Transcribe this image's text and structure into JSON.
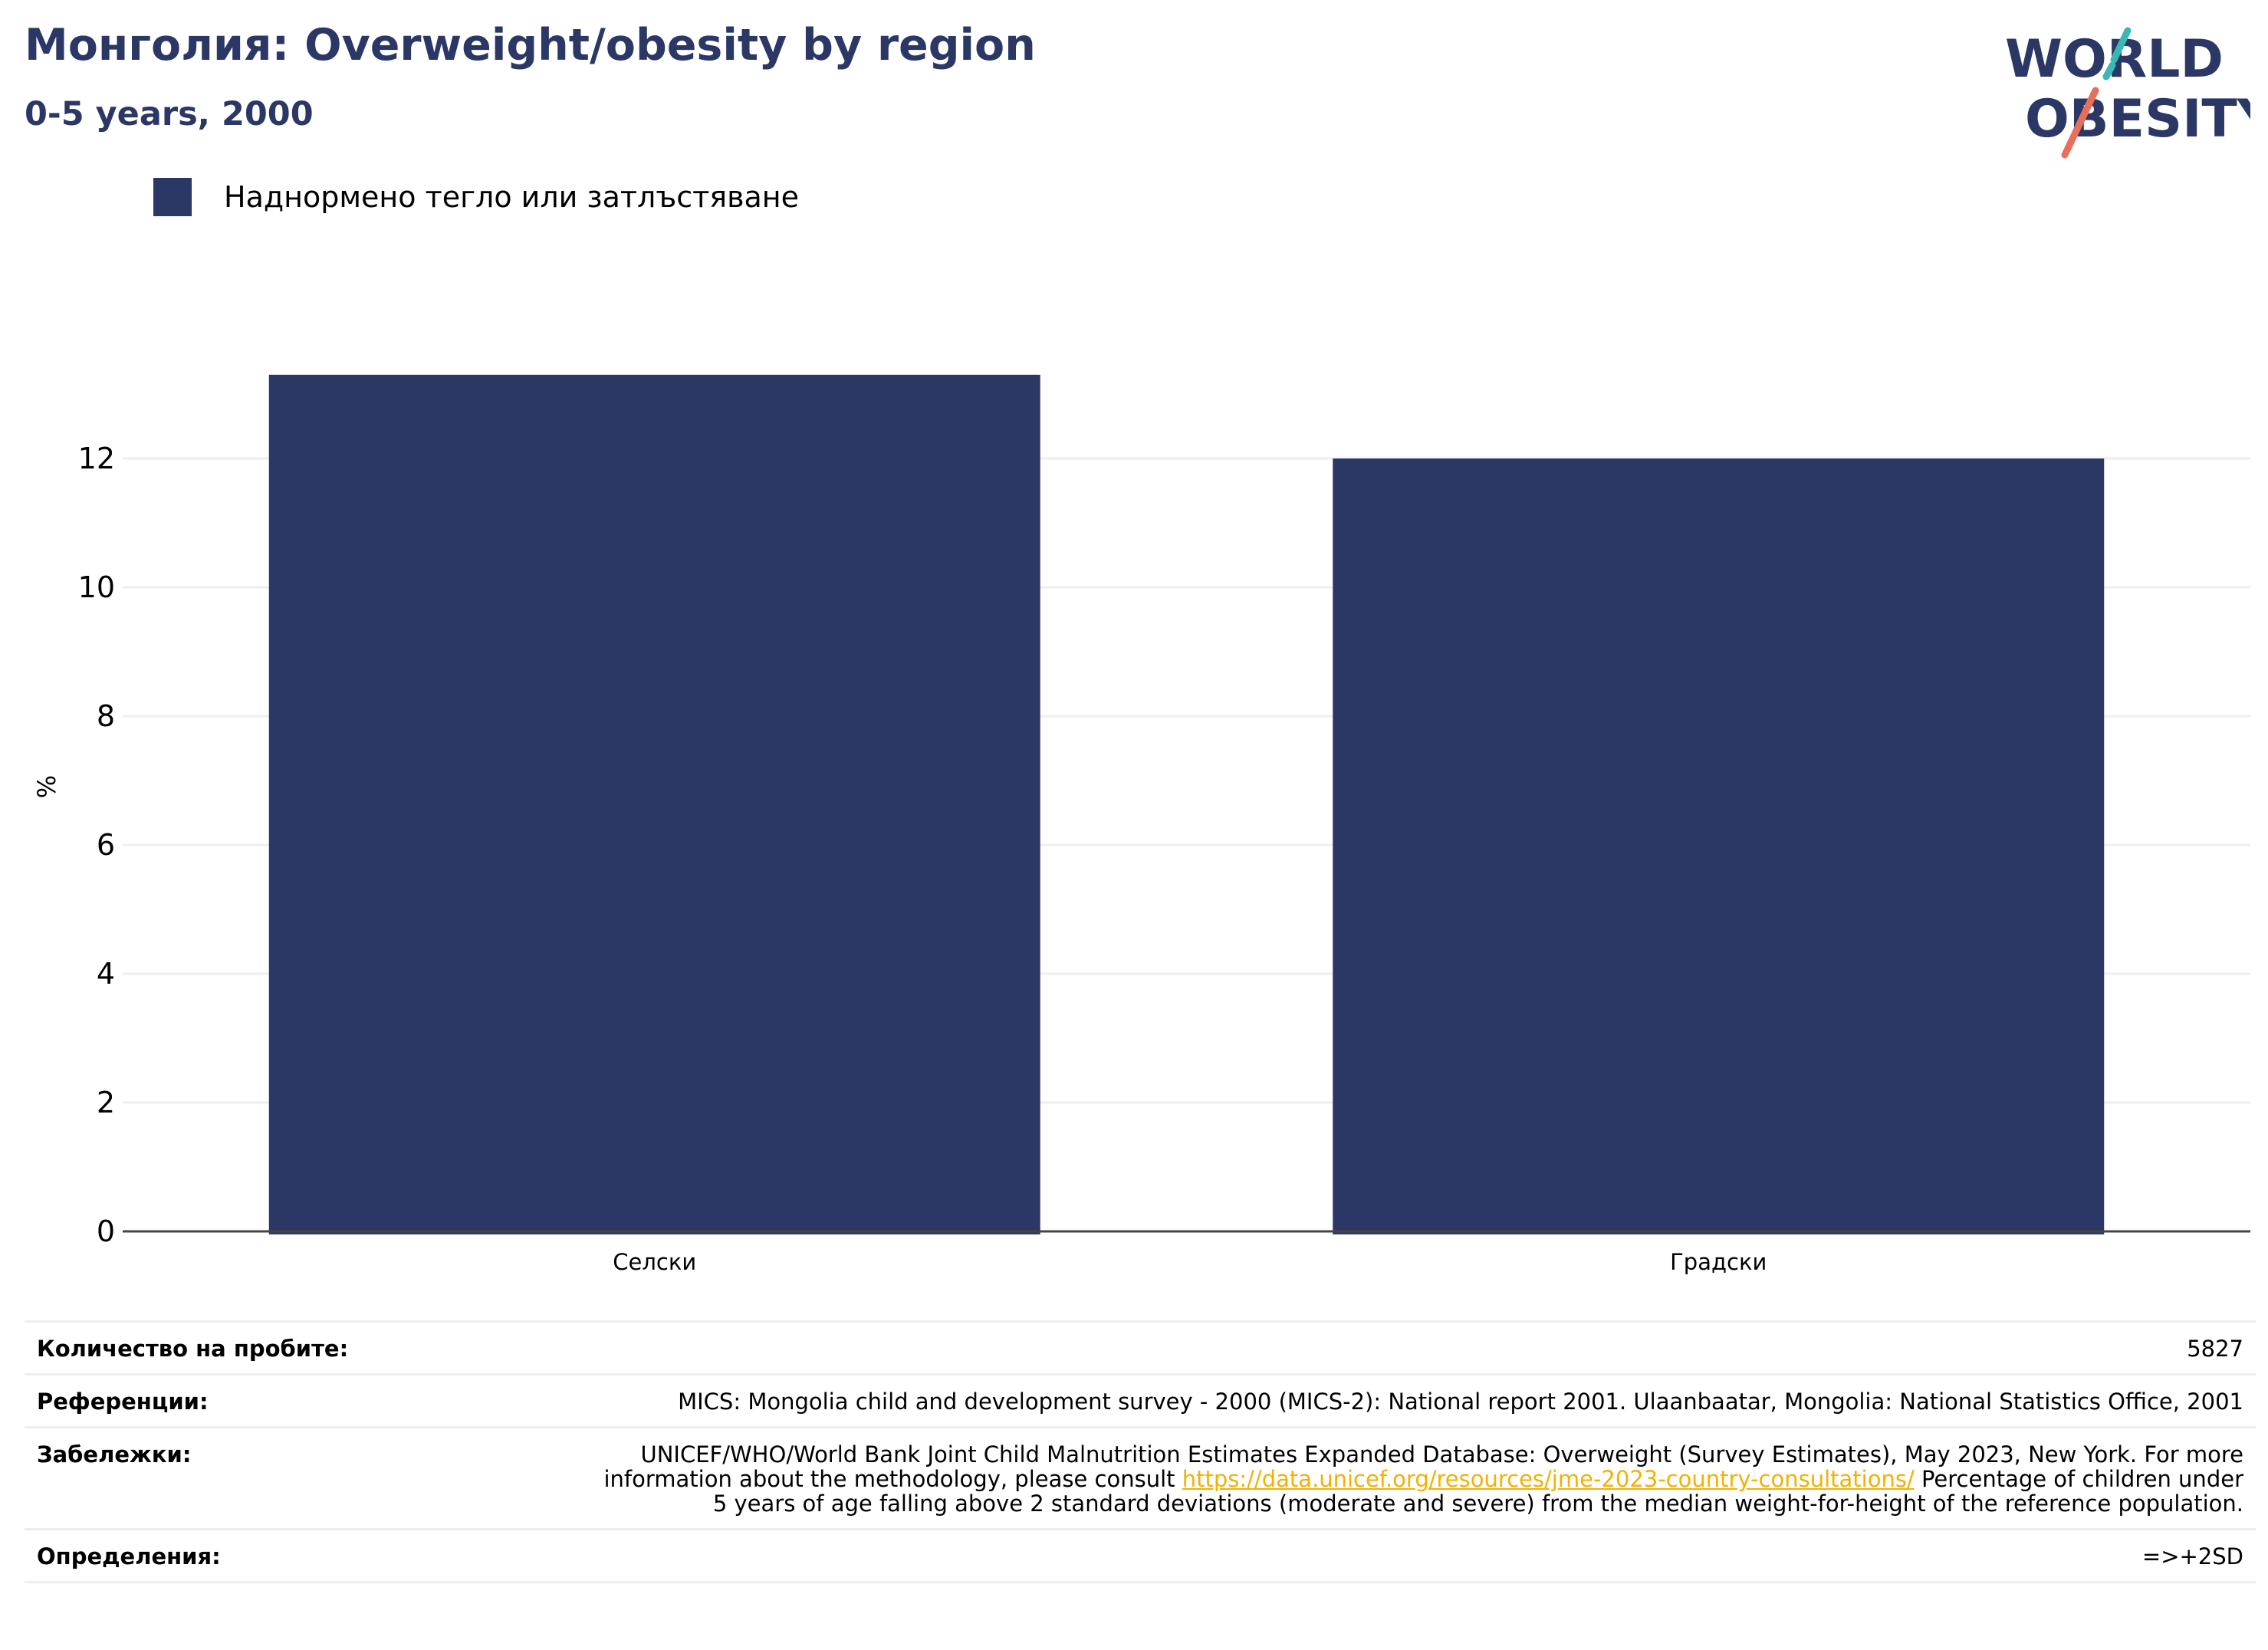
{
  "header": {
    "title": "Монголия: Overweight/obesity by region",
    "subtitle": "0-5 years, 2000"
  },
  "logo": {
    "line1": "WORLD",
    "line2": "OBESITY",
    "colors": {
      "text": "#2b3764",
      "slash_top": "#3bb8b5",
      "slash_bottom": "#e8705b"
    }
  },
  "legend": {
    "label": "Наднормено тегло или затлъстяване",
    "color": "#2b3764"
  },
  "chart_data": {
    "type": "bar",
    "categories": [
      "Селски",
      "Градски"
    ],
    "series": [
      {
        "name": "Наднормено тегло или затлъстяване",
        "values": [
          13.3,
          12.0
        ],
        "color": "#2b3764"
      }
    ],
    "ylabel": "%",
    "ylim": [
      0,
      14
    ],
    "yticks": [
      0,
      2,
      4,
      6,
      8,
      10,
      12
    ],
    "grid": true,
    "legend_placement": "top-left"
  },
  "footer": {
    "sample_label": "Количество на пробите:",
    "sample_value": "5827",
    "references_label": "Референции:",
    "references_value": "MICS: Mongolia child and development survey - 2000 (MICS-2): National report 2001. Ulaanbaatar, Mongolia: National Statistics Office, 2001",
    "notes_label": "Забележки:",
    "notes_before": "UNICEF/WHO/World Bank Joint Child Malnutrition Estimates Expanded Database: Overweight (Survey Estimates), May 2023, New York. For more information about the methodology, please consult ",
    "notes_link": "https://data.unicef.org/resources/jme-2023-country-consultations/",
    "notes_after": " Percentage of children under 5 years of age falling above 2 standard deviations (moderate and severe) from the median weight-for-height of the reference population.",
    "definitions_label": "Определения:",
    "definitions_value": "=>+2SD"
  }
}
